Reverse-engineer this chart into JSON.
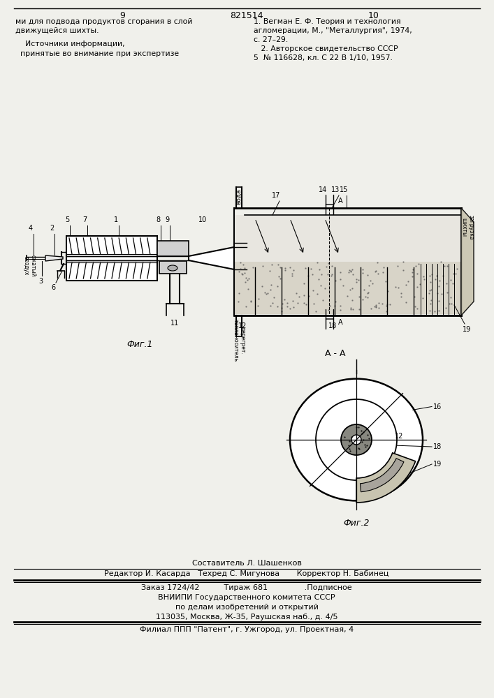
{
  "bg_color": "#f0f0eb",
  "page_number_left": "9",
  "page_number_center": "821514",
  "page_number_right": "10",
  "top_left_text1": "ми для подвода продуктов сгорания в слой",
  "top_left_text2": "движущейся шихты.",
  "top_left_text3": "    Источники информации,",
  "top_left_text4": "  принятые во внимание при экспертизе",
  "top_right_text1": "1. Вегман Е. Ф. Теория и технология",
  "top_right_text2": "агломерации, М., \"Металлургия\", 1974,",
  "top_right_text3": "с. 27–29.",
  "top_right_text4": "   2. Авторское свидетельство СССР",
  "top_right_text5": "5  № 116628, кл. С 22 В 1/10, 1957.",
  "fig1_label": "Фиг.1",
  "fig2_label": "Фиг.2",
  "section_label": "А - А",
  "label_voda": "вода",
  "label_szhatyy": "сжатый\nвоздух",
  "label_zagruzka": "загрузка\nшихты",
  "label_peregretyy": "перегрет.\nтеплоноситель",
  "footer_line1": "Составитель Л. Шашенков",
  "footer_line2": "Редактор И. Касарда   Техред С. Мигунова       Корректор Н. Бабинец",
  "footer_line3": "Заказ 1724/42          Тираж 681               .Подписное",
  "footer_line4": "ВНИИПИ Государственного комитета СССР",
  "footer_line5": "по делам изобретений и открытий",
  "footer_line6": "113035, Москва, Ж-35, Раушская наб., д. 4/5",
  "footer_line7": "Филиал ППП \"Патент\", г. Ужгород, ул. Проектная, 4"
}
